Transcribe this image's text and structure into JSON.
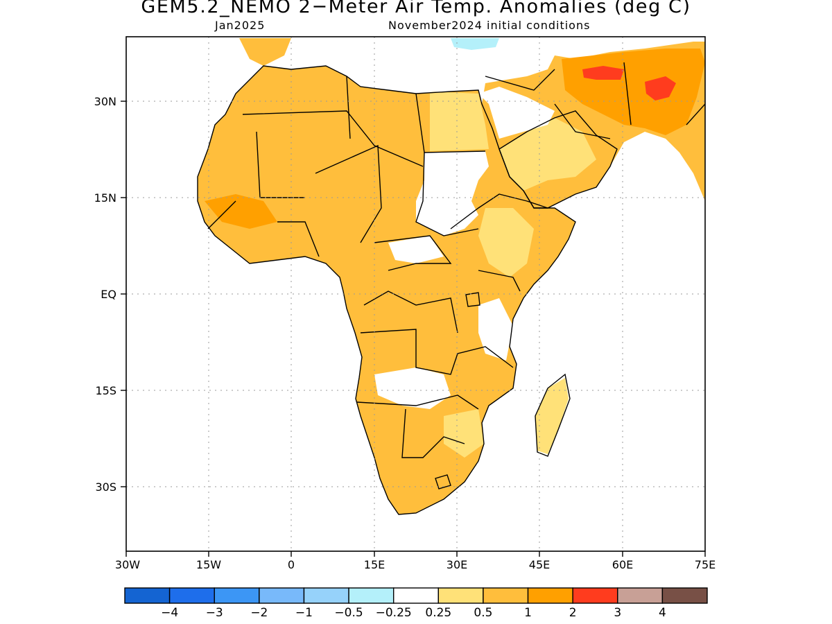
{
  "title": "GEM5.2_NEMO 2−Meter Air Temp. Anomalies (deg C)",
  "subtitle_left": "Jan2025",
  "subtitle_right": "November2024 initial conditions",
  "lat_labels": [
    "30N",
    "15N",
    "EQ",
    "15S",
    "30S"
  ],
  "lon_labels": [
    "30W",
    "15W",
    "0",
    "15E",
    "30E",
    "45E",
    "60E",
    "75E"
  ],
  "legend": {
    "colors": [
      "#1464d2",
      "#1e6eeb",
      "#3c96f5",
      "#78b9fa",
      "#96d2fa",
      "#b4f0fa",
      "#ffffff",
      "#ffe178",
      "#ffbe3c",
      "#ffa000",
      "#ff3c1e",
      "#c8a096",
      "#785046"
    ],
    "labels": [
      "−4",
      "−3",
      "−2",
      "−1",
      "−0.5",
      "−0.25",
      "0.25",
      "0.5",
      "1",
      "2",
      "3",
      "4"
    ]
  },
  "colors": {
    "frame": "#000000",
    "grid": "#9a9a9a",
    "border": "#000000"
  }
}
